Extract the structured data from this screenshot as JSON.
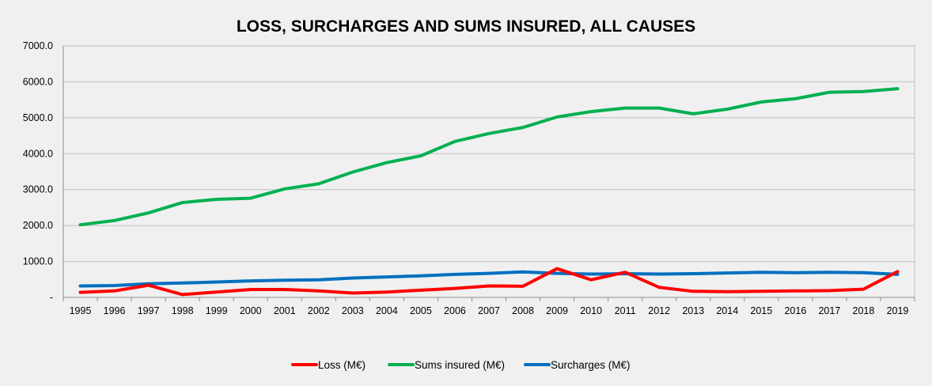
{
  "chart_data": {
    "type": "line",
    "title": "LOSS, SURCHARGES AND SUMS INSURED, ALL CAUSES",
    "xlabel": "",
    "ylabel": "",
    "x": [
      "1995",
      "1996",
      "1997",
      "1998",
      "1999",
      "2000",
      "2001",
      "2002",
      "2003",
      "2004",
      "2005",
      "2006",
      "2007",
      "2008",
      "2009",
      "2010",
      "2011",
      "2012",
      "2013",
      "2014",
      "2015",
      "2016",
      "2017",
      "2018",
      "2019"
    ],
    "ylim": [
      0,
      7000
    ],
    "yticks": [
      0,
      1000,
      2000,
      3000,
      4000,
      5000,
      6000,
      7000
    ],
    "ytick_labels": [
      "-",
      "1000.0",
      "2000.0",
      "3000.0",
      "4000.0",
      "5000.0",
      "6000.0",
      "7000.0"
    ],
    "grid": true,
    "legend_position": "bottom",
    "series": [
      {
        "name": "Loss (M€)",
        "color": "#ff0000",
        "values": [
          140,
          180,
          340,
          80,
          150,
          220,
          220,
          180,
          120,
          150,
          200,
          250,
          320,
          310,
          800,
          490,
          700,
          280,
          170,
          160,
          170,
          180,
          190,
          230,
          720
        ]
      },
      {
        "name": "Sums insured (M€)",
        "color": "#00b050",
        "values": [
          2020,
          2140,
          2350,
          2640,
          2730,
          2760,
          3020,
          3160,
          3490,
          3750,
          3940,
          4340,
          4560,
          4730,
          5020,
          5170,
          5270,
          5270,
          5110,
          5240,
          5440,
          5530,
          5710,
          5730,
          5810
        ]
      },
      {
        "name": "Surcharges (M€)",
        "color": "#0070c0",
        "values": [
          320,
          330,
          380,
          400,
          430,
          460,
          480,
          490,
          540,
          570,
          600,
          640,
          670,
          710,
          670,
          650,
          660,
          650,
          660,
          680,
          700,
          690,
          700,
          690,
          640
        ]
      }
    ]
  }
}
